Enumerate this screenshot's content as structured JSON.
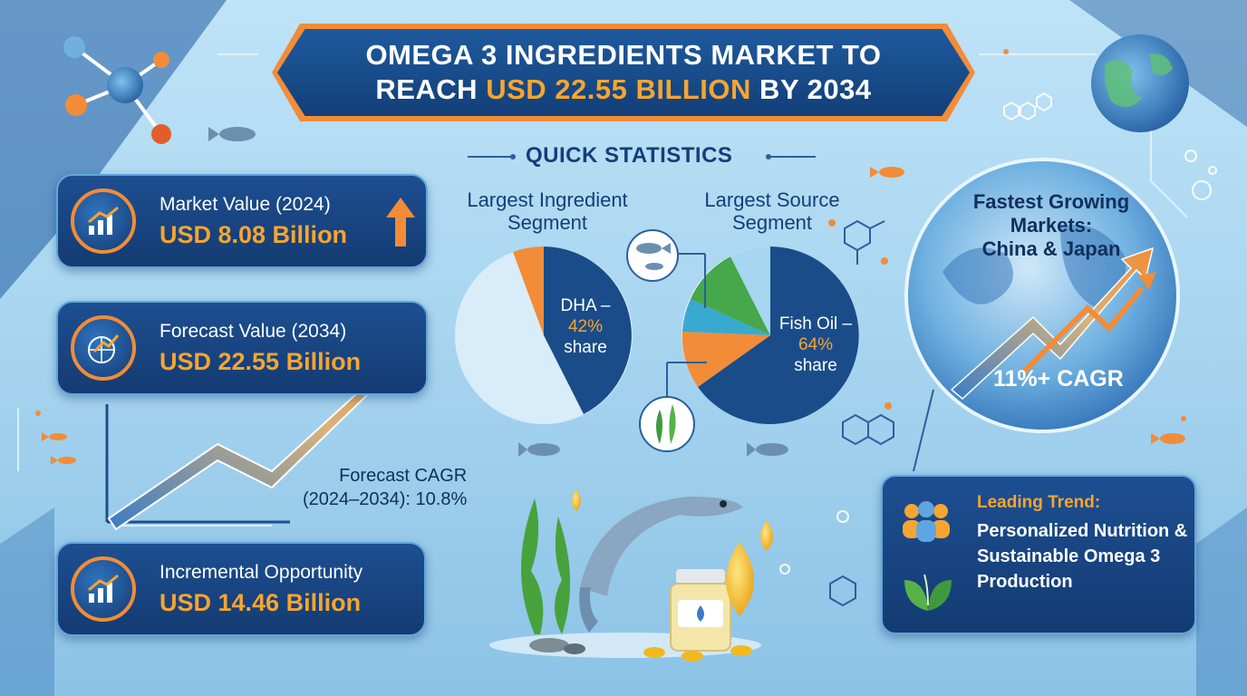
{
  "title": {
    "line1": "OMEGA 3 INGREDIENTS MARKET TO",
    "line2_pre": "REACH ",
    "line2_highlight": "USD 22.55 BILLION",
    "line2_post": " BY 2034"
  },
  "quick_stats": {
    "heading": "QUICK STATISTICS"
  },
  "cards": {
    "market_value": {
      "label": "Market Value (2024)",
      "value": "USD 8.08 Billion",
      "icon": "bar-chart-icon"
    },
    "forecast_value": {
      "label": "Forecast Value (2034)",
      "value": "USD 22.55 Billion",
      "icon": "globe-growth-icon"
    },
    "incremental": {
      "label": "Incremental Opportunity",
      "value": "USD 14.46 Billion",
      "icon": "bar-chart-icon"
    }
  },
  "forecast_cagr": {
    "line1": "Forecast CAGR",
    "line2": "(2024–2034): 10.8%"
  },
  "ingredient_segment": {
    "title_line1": "Largest Ingredient",
    "title_line2": "Segment",
    "label_name": "DHA –",
    "label_pct": "42%",
    "label_suffix": "share"
  },
  "source_segment": {
    "title_line1": "Largest Source",
    "title_line2": "Segment",
    "label_name": "Fish Oil –",
    "label_pct": "64%",
    "label_suffix": "share"
  },
  "fastest_markets": {
    "line1": "Fastest Growing",
    "line2": "Markets:",
    "line3": "China & Japan",
    "cagr": "11%+ CAGR"
  },
  "trend": {
    "label": "Leading Trend:",
    "text": "Personalized Nutrition & Sustainable Omega 3 Production"
  },
  "colors": {
    "navy": "#143b72",
    "accent_orange": "#f6a531",
    "border_orange": "#f28c38",
    "light_blue": "#bfe3f7"
  }
}
